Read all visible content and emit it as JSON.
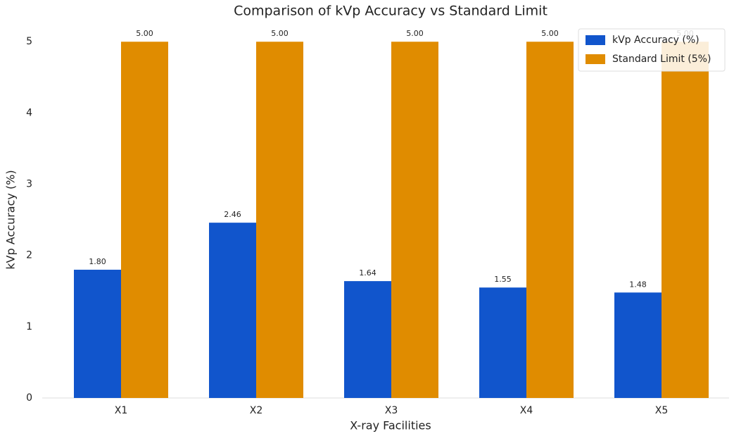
{
  "chart_data": {
    "type": "bar",
    "title": "Comparison of kVp Accuracy vs Standard Limit",
    "x_label": "X-ray Facilities",
    "y_label": "kVp Accuracy (%)",
    "categories": [
      "X1",
      "X2",
      "X3",
      "X4",
      "X5"
    ],
    "series": [
      {
        "name": "kVp Accuracy (%)",
        "color": "#1155cc",
        "values": [
          1.8,
          2.46,
          1.64,
          1.55,
          1.48
        ],
        "value_labels": [
          "1.80",
          "2.46",
          "1.64",
          "1.55",
          "1.48"
        ]
      },
      {
        "name": "Standard Limit (5%)",
        "color": "#e08c00",
        "values": [
          5,
          5,
          5,
          5,
          5
        ],
        "value_labels": [
          "5.00",
          "5.00",
          "5.00",
          "5.00",
          "5.00"
        ]
      }
    ],
    "ylim": [
      0,
      5.2
    ],
    "yticks": [
      0,
      1,
      2,
      3,
      4,
      5
    ],
    "grid": false,
    "legend": "upper right"
  }
}
